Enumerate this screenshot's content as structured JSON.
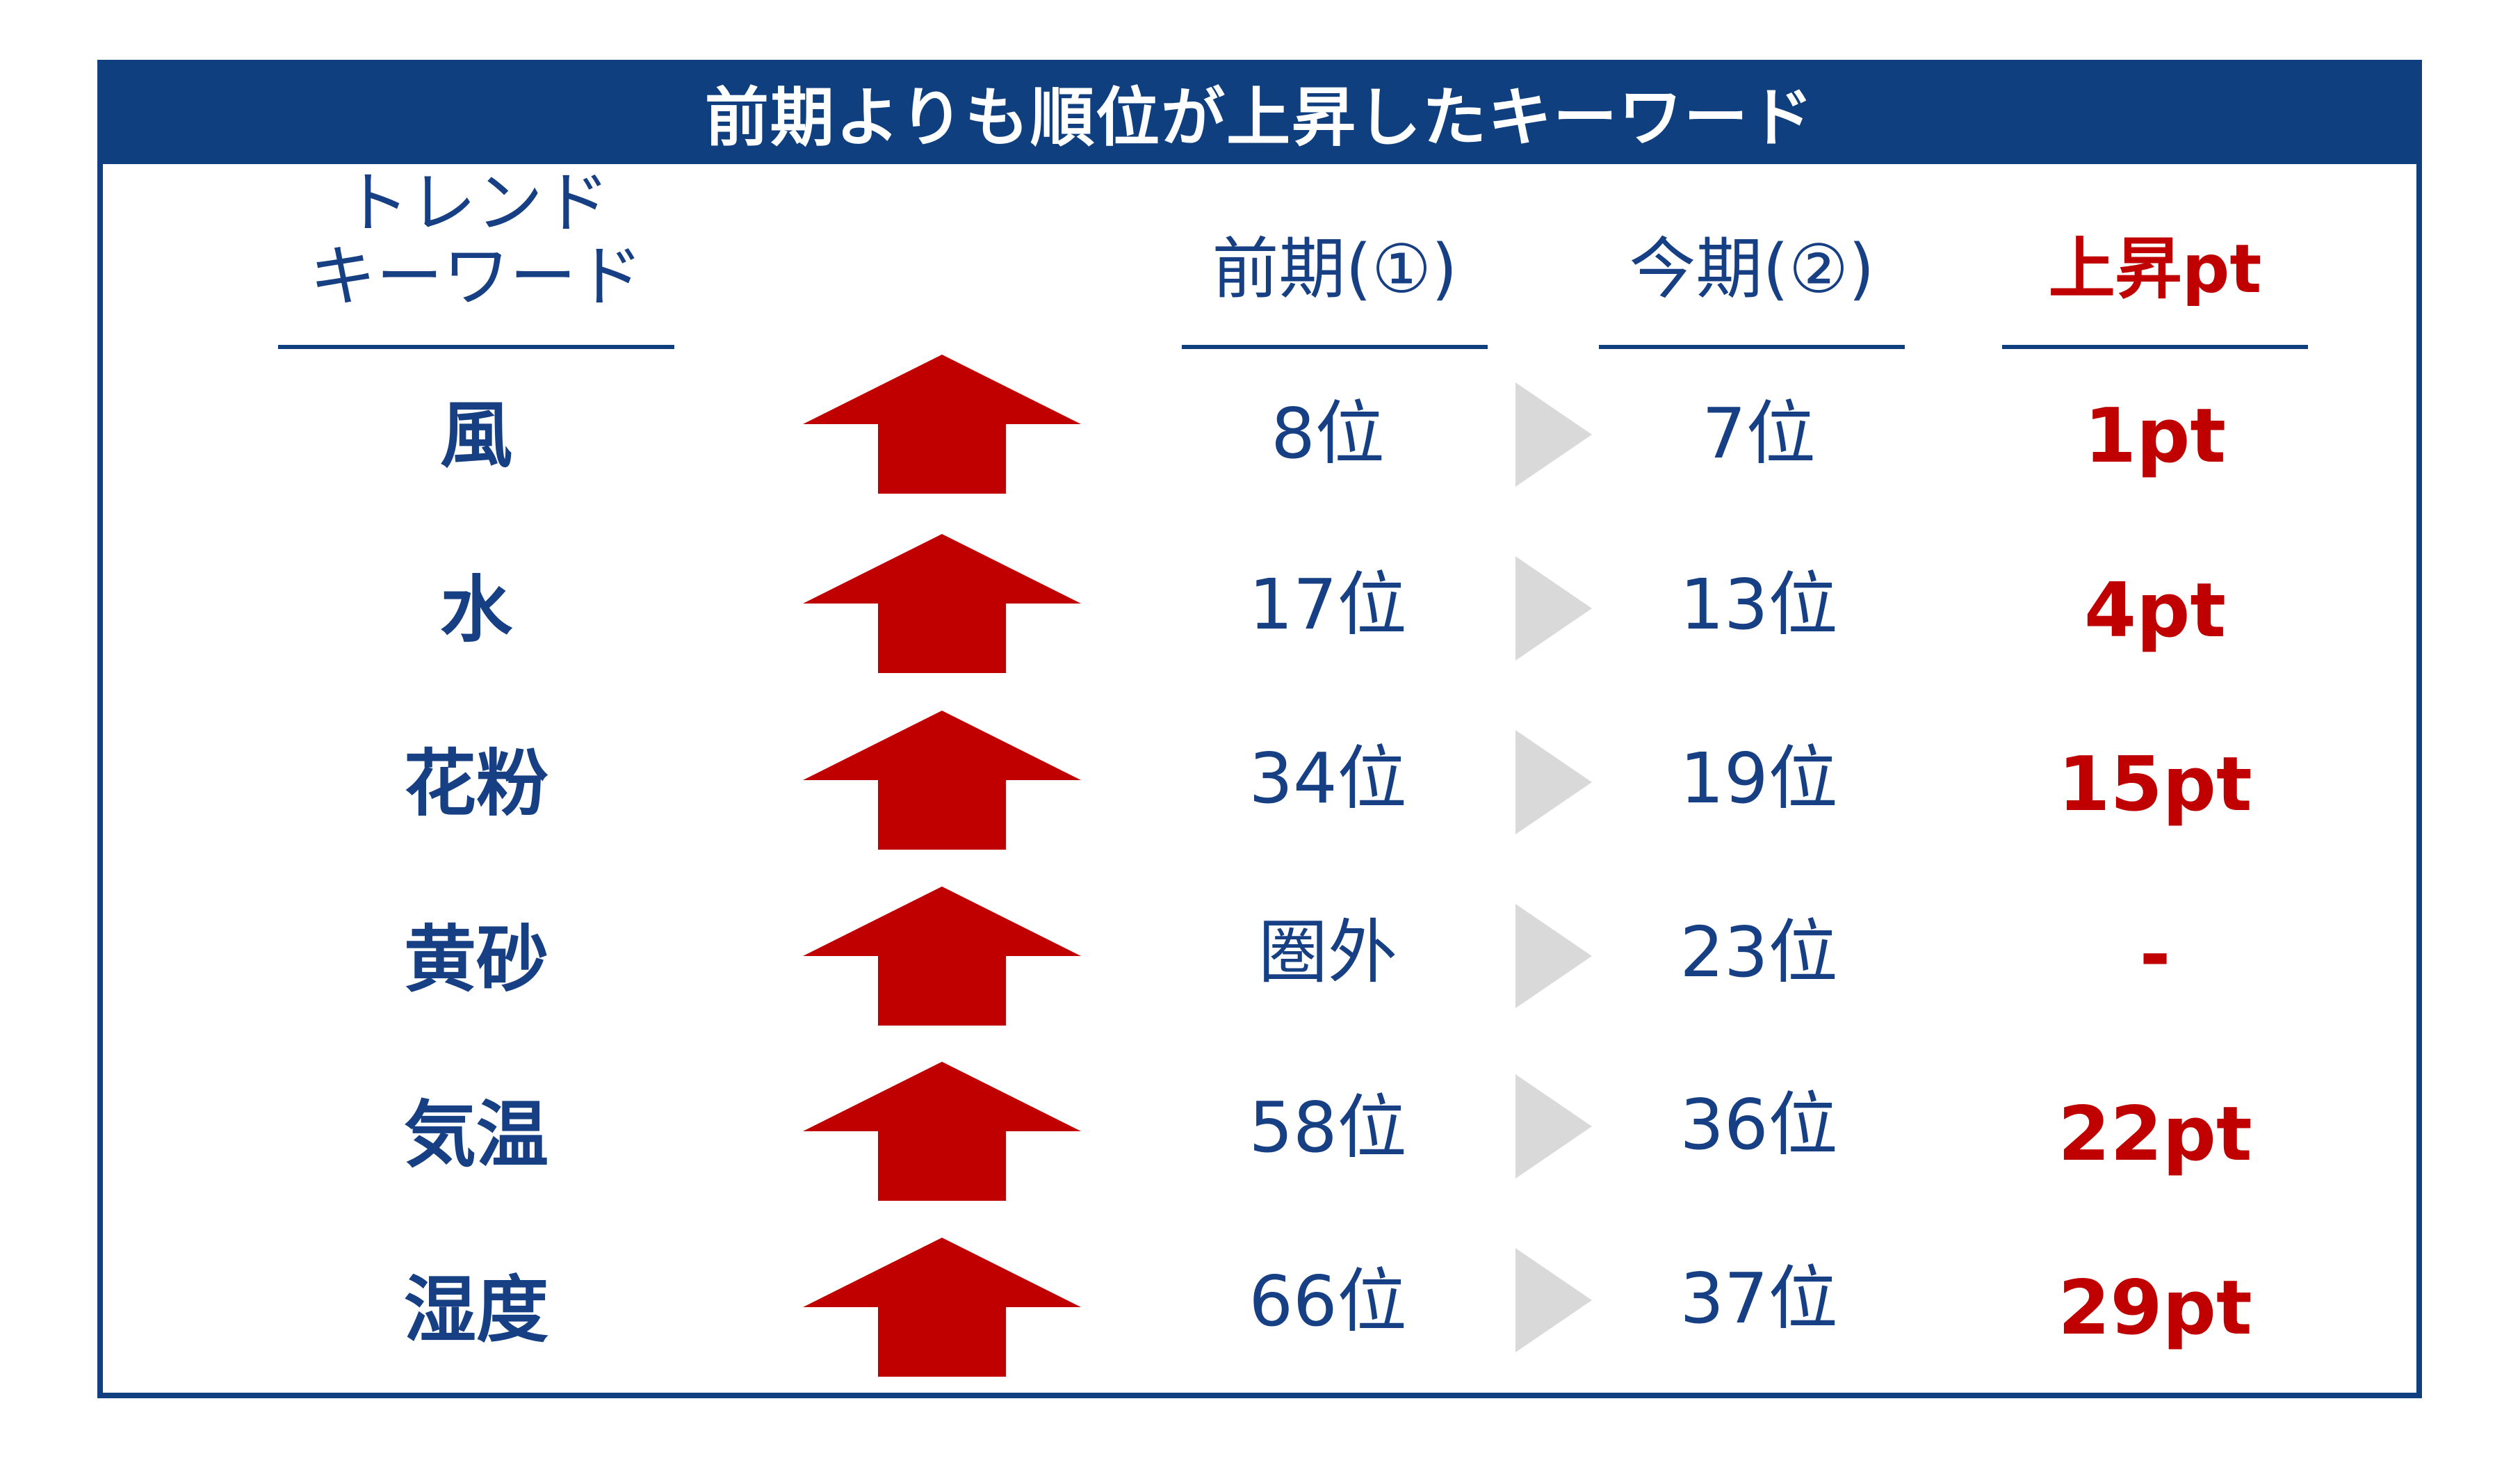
{
  "title": "前期よりも順位が上昇したキーワード",
  "headers": {
    "keyword_line1": "トレンド",
    "keyword_line2": "キーワード",
    "prev": "前期(①)",
    "curr": "今期(②)",
    "change": "上昇pt"
  },
  "colors": {
    "navy": "#0f3f7f",
    "red": "#c00000",
    "gray": "#d9d9d9"
  },
  "icons": {
    "trend": "up-arrow-icon",
    "separator": "right-triangle-icon"
  },
  "rows": [
    {
      "keyword": "風",
      "prev": "8位",
      "curr": "7位",
      "change": "1pt"
    },
    {
      "keyword": "水",
      "prev": "17位",
      "curr": "13位",
      "change": "4pt"
    },
    {
      "keyword": "花粉",
      "prev": "34位",
      "curr": "19位",
      "change": "15pt"
    },
    {
      "keyword": "黄砂",
      "prev": "圏外",
      "curr": "23位",
      "change": "-"
    },
    {
      "keyword": "気温",
      "prev": "58位",
      "curr": "36位",
      "change": "22pt"
    },
    {
      "keyword": "湿度",
      "prev": "66位",
      "curr": "37位",
      "change": "29pt"
    }
  ]
}
